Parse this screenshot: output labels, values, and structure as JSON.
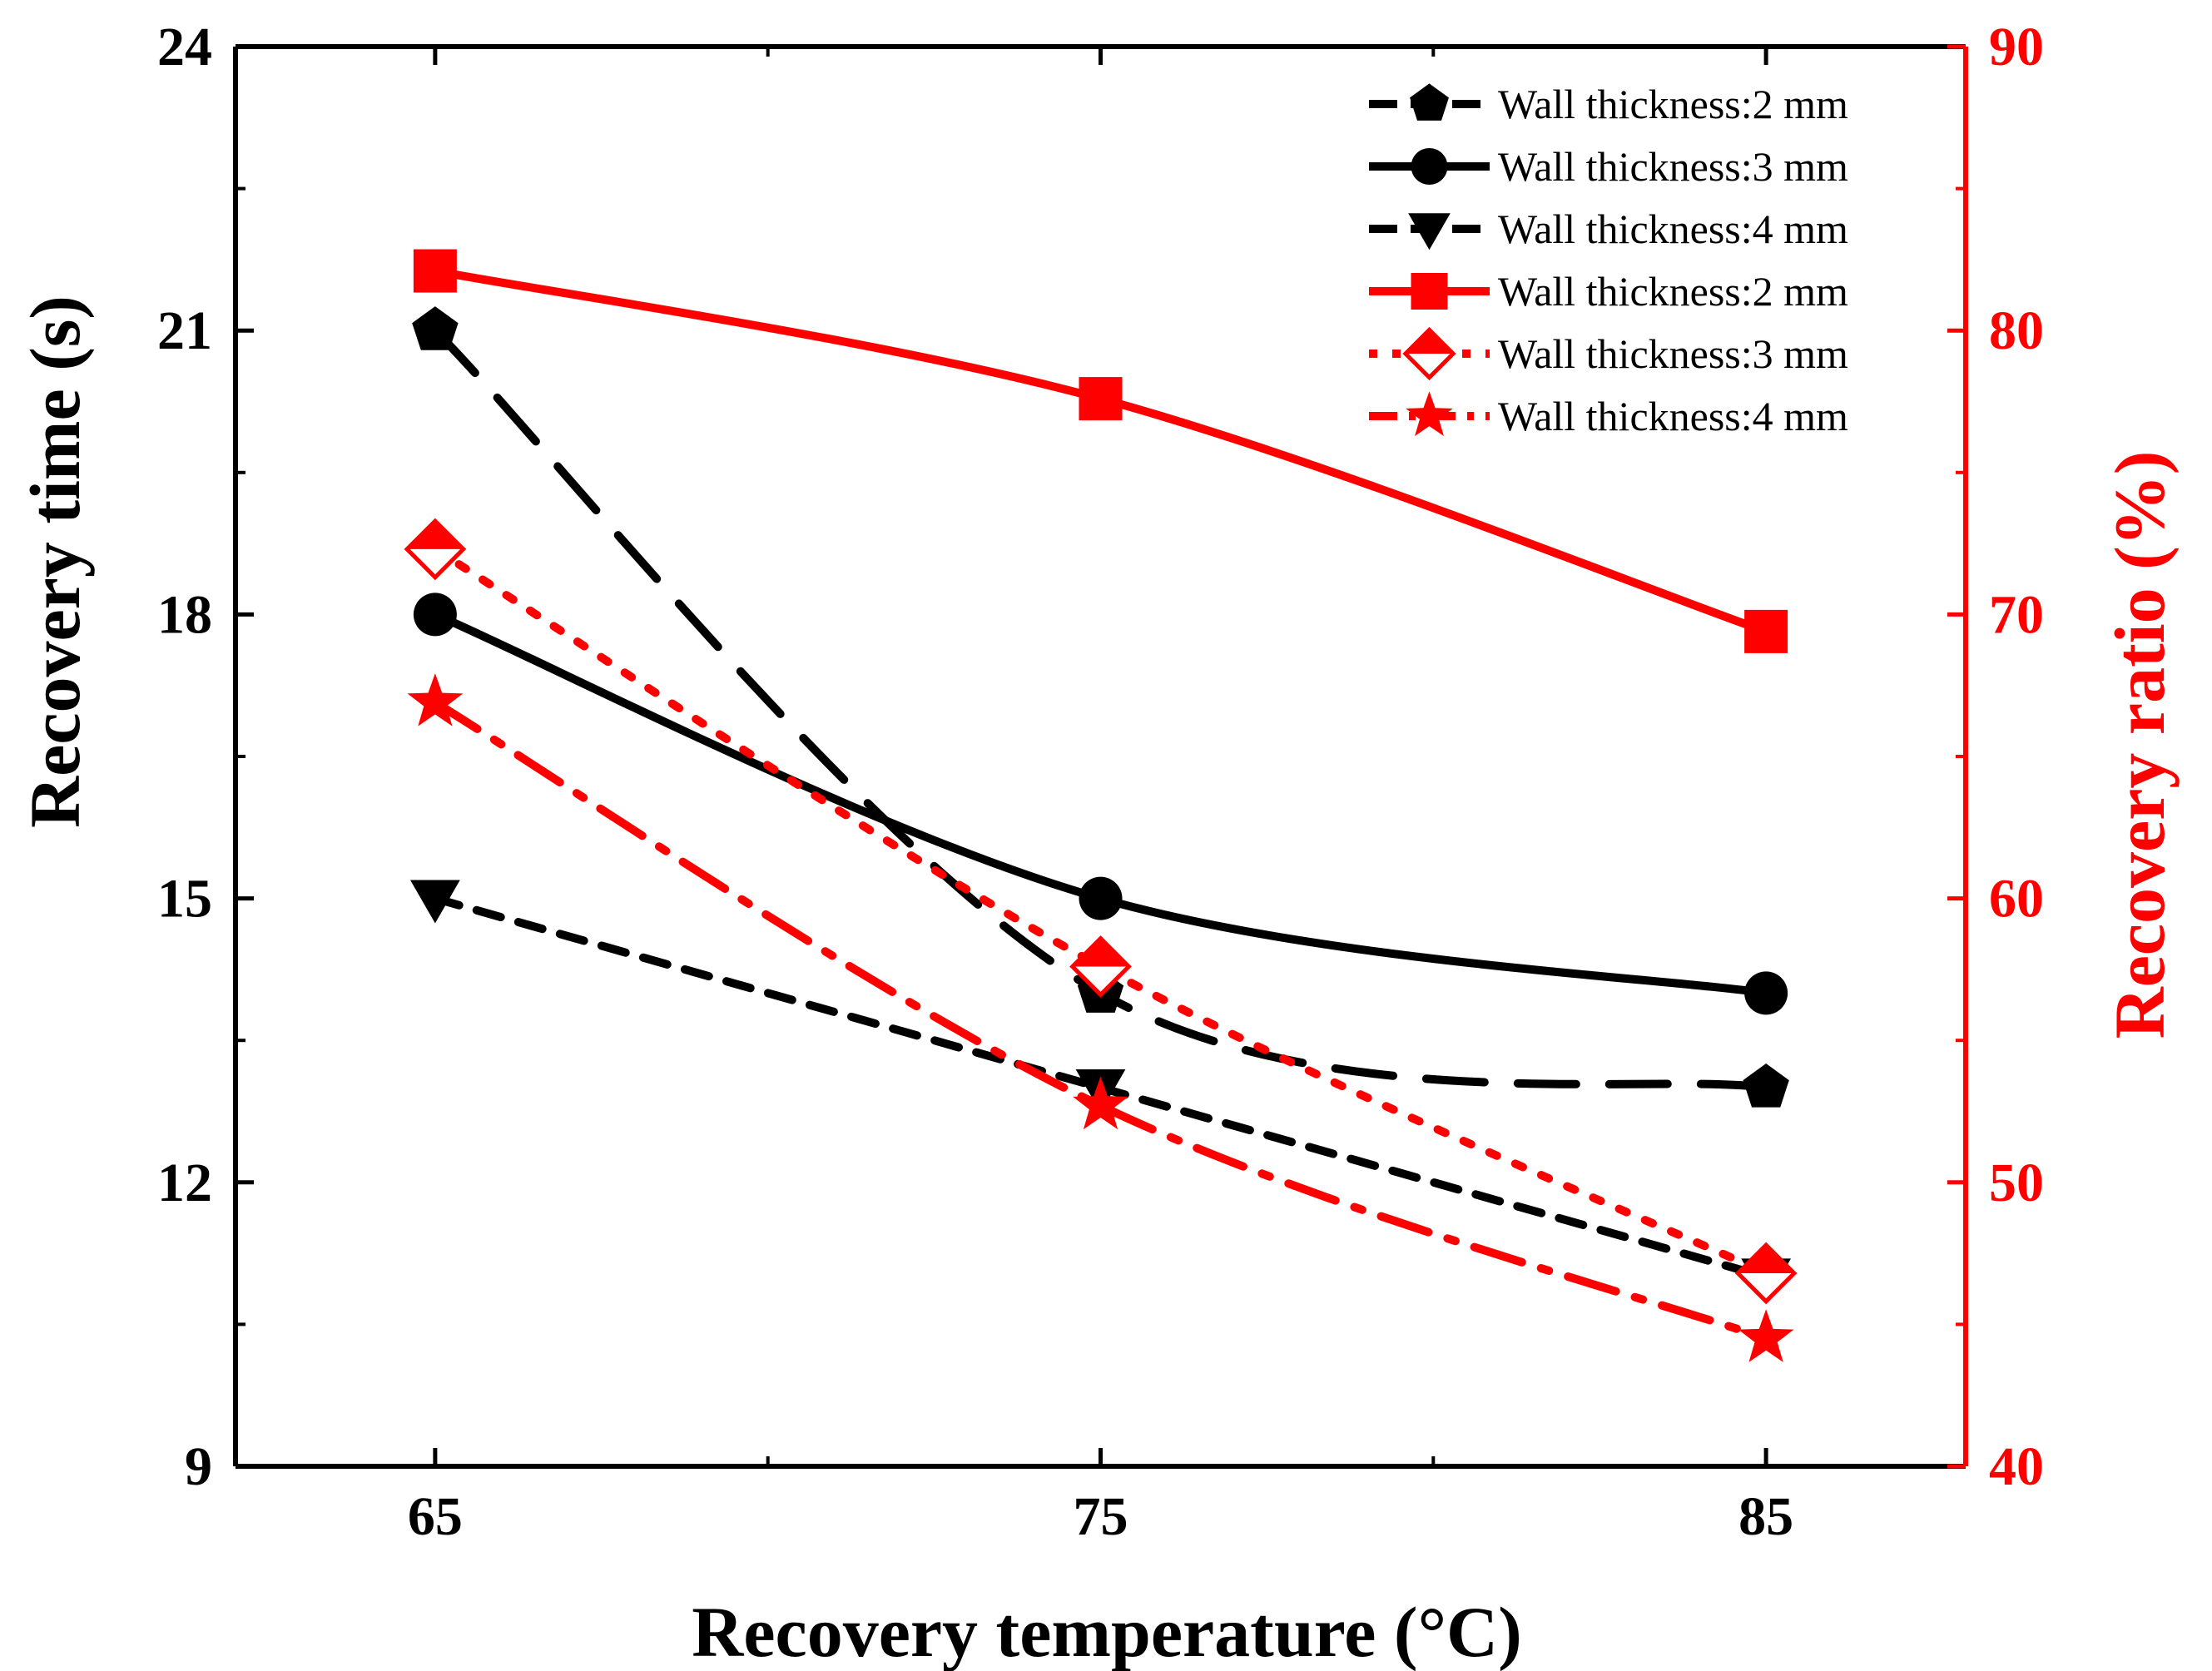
{
  "chart_data": {
    "type": "line",
    "x": [
      65,
      75,
      85
    ],
    "xlabel": "Recovery temperature (°C)",
    "ylabel": "Recovery time (s)",
    "y2label": "Recovery ratio (%)",
    "xlim": [
      62,
      88
    ],
    "ylim": [
      9,
      24
    ],
    "y2lim": [
      40,
      90
    ],
    "xticks": [
      "65",
      "75",
      "85"
    ],
    "yticks": [
      "9",
      "12",
      "15",
      "18",
      "21",
      "24"
    ],
    "y2ticks": [
      "40",
      "50",
      "60",
      "70",
      "80",
      "90"
    ],
    "legend_position": "top-right",
    "colors": {
      "black": "#000000",
      "red": "#ff0000"
    },
    "series": [
      {
        "name": "Wall thickness:2 mm",
        "axis": "left",
        "marker": "pentagon",
        "color": "#000000",
        "line": "longdash",
        "values": [
          21,
          14,
          13
        ]
      },
      {
        "name": "Wall thickness:3 mm",
        "axis": "left",
        "marker": "circle",
        "color": "#000000",
        "line": "solid",
        "values": [
          18,
          15,
          14
        ]
      },
      {
        "name": "Wall thickness:4 mm",
        "axis": "left",
        "marker": "triangle-down",
        "color": "#000000",
        "line": "shortdash",
        "values": [
          15,
          13,
          11
        ]
      },
      {
        "name": "Wall thickness:2 mm",
        "axis": "right",
        "marker": "square",
        "color": "#ff0000",
        "line": "solid",
        "values": [
          82.1,
          77.6,
          69.4
        ]
      },
      {
        "name": "Wall thickness:3 mm",
        "axis": "right",
        "marker": "diamond-half",
        "color": "#ff0000",
        "line": "dot",
        "values": [
          72.3,
          57.6,
          46.8
        ]
      },
      {
        "name": "Wall thickness:4 mm",
        "axis": "right",
        "marker": "star",
        "color": "#ff0000",
        "line": "dashdot",
        "values": [
          66.9,
          52.7,
          44.5
        ]
      }
    ]
  }
}
